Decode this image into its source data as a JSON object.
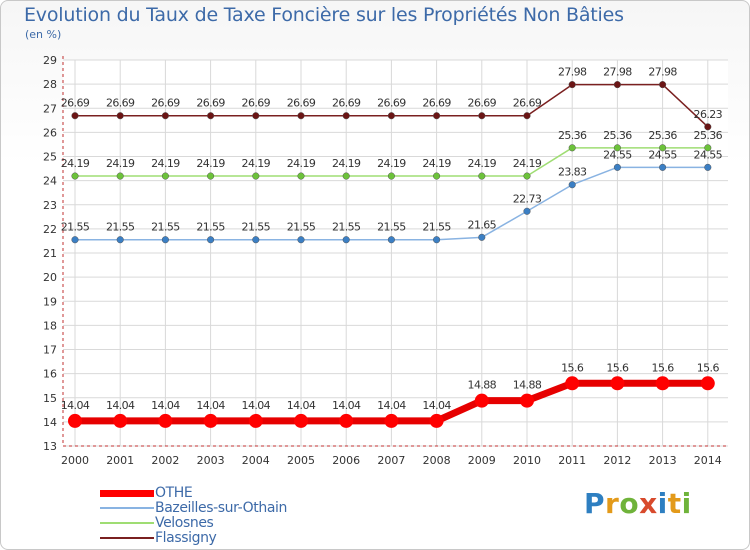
{
  "title": "Evolution du Taux de Taxe Foncière sur les Propriétés Non Bâties",
  "subtitle": "(en %)",
  "logo": {
    "text": "Proxiti",
    "letters": [
      "P",
      "r",
      "o",
      "x",
      "i",
      "t",
      "i"
    ],
    "colors": [
      "#2e7fc1",
      "#e39a1a",
      "#6fb33a",
      "#d84a2c",
      "#2e7fc1",
      "#e39a1a",
      "#6fb33a"
    ]
  },
  "chart_data": {
    "type": "line",
    "title": "Evolution du Taux de Taxe Foncière sur les Propriétés Non Bâties",
    "ylabel": "(en %)",
    "xlabel": "",
    "ylim": [
      13,
      29
    ],
    "yticks": [
      "13",
      "14",
      "15",
      "16",
      "17",
      "18",
      "19",
      "20",
      "21",
      "22",
      "23",
      "24",
      "25",
      "26",
      "27",
      "28",
      "29"
    ],
    "categories": [
      "2000",
      "2001",
      "2002",
      "2003",
      "2004",
      "2005",
      "2006",
      "2007",
      "2008",
      "2009",
      "2010",
      "2011",
      "2012",
      "2013",
      "2014"
    ],
    "series": [
      {
        "name": "OTHE",
        "color": "#ff0000",
        "line_color": "#e60000",
        "values": [
          14.04,
          14.04,
          14.04,
          14.04,
          14.04,
          14.04,
          14.04,
          14.04,
          14.04,
          14.88,
          14.88,
          15.6,
          15.6,
          15.6,
          15.6
        ],
        "labels": [
          "14.04",
          "14.04",
          "14.04",
          "14.04",
          "14.04",
          "14.04",
          "14.04",
          "14.04",
          "14.04",
          "14.88",
          "14.88",
          "15.6",
          "15.6",
          "15.6",
          "15.6"
        ]
      },
      {
        "name": "Bazeilles-sur-Othain",
        "color": "#3b7fc4",
        "line_color": "#89b3e2",
        "values": [
          21.55,
          21.55,
          21.55,
          21.55,
          21.55,
          21.55,
          21.55,
          21.55,
          21.55,
          21.65,
          22.73,
          23.83,
          24.55,
          24.55,
          24.55
        ],
        "labels": [
          "21.55",
          "21.55",
          "21.55",
          "21.55",
          "21.55",
          "21.55",
          "21.55",
          "21.55",
          "21.55",
          "21.65",
          "22.73",
          "23.83",
          "24.55",
          "24.55",
          "24.55"
        ]
      },
      {
        "name": "Velosnes",
        "color": "#6cc23a",
        "line_color": "#9fdd73",
        "values": [
          24.19,
          24.19,
          24.19,
          24.19,
          24.19,
          24.19,
          24.19,
          24.19,
          24.19,
          24.19,
          24.19,
          25.36,
          25.36,
          25.36,
          25.36
        ],
        "labels": [
          "24.19",
          "24.19",
          "24.19",
          "24.19",
          "24.19",
          "24.19",
          "24.19",
          "24.19",
          "24.19",
          "24.19",
          "24.19",
          "25.36",
          "25.36",
          "25.36",
          "25.36"
        ]
      },
      {
        "name": "Flassigny",
        "color": "#6b1515",
        "line_color": "#7a2020",
        "values": [
          26.69,
          26.69,
          26.69,
          26.69,
          26.69,
          26.69,
          26.69,
          26.69,
          26.69,
          26.69,
          26.69,
          27.98,
          27.98,
          27.98,
          26.23
        ],
        "labels": [
          "26.69",
          "26.69",
          "26.69",
          "26.69",
          "26.69",
          "26.69",
          "26.69",
          "26.69",
          "26.69",
          "26.69",
          "26.69",
          "27.98",
          "27.98",
          "27.98",
          "26.23"
        ]
      }
    ]
  }
}
